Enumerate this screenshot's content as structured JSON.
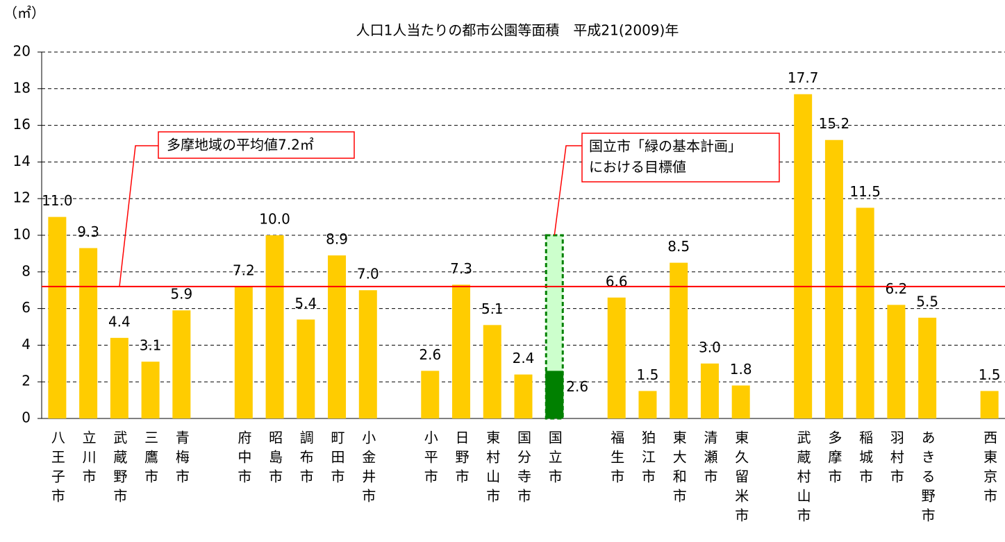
{
  "chart_data": {
    "type": "bar",
    "title": "人口1人当たりの都市公園等面積　平成21(2009)年",
    "y_unit": "（㎡）",
    "categories": [
      "八王子市",
      "立川市",
      "武蔵野市",
      "三鷹市",
      "青梅市",
      null,
      "府中市",
      "昭島市",
      "調布市",
      "町田市",
      "小金井市",
      null,
      "小平市",
      "日野市",
      "東村山市",
      "国分寺市",
      "国立市",
      null,
      "福生市",
      "狛江市",
      "東大和市",
      "清瀬市",
      "東久留米市",
      null,
      "武蔵村山市",
      "多摩市",
      "稲城市",
      "羽村市",
      "あきる野市",
      null,
      "西東京市"
    ],
    "values": [
      11.0,
      9.3,
      4.4,
      3.1,
      5.9,
      null,
      7.2,
      10.0,
      5.4,
      8.9,
      7.0,
      null,
      2.6,
      7.3,
      5.1,
      2.4,
      2.6,
      null,
      6.6,
      1.5,
      8.5,
      3.0,
      1.8,
      null,
      17.7,
      15.2,
      11.5,
      6.2,
      5.5,
      null,
      1.5
    ],
    "value_labels": [
      "11.0",
      "9.3",
      "4.4",
      "3.1",
      "5.9",
      null,
      "7.2",
      "10.0",
      "5.4",
      "8.9",
      "7.0",
      null,
      "2.6",
      "7.3",
      "5.1",
      "2.4",
      "2.6",
      null,
      "6.6",
      "1.5",
      "8.5",
      "3.0",
      "1.8",
      null,
      "17.7",
      "15.2",
      "11.5",
      "6.2",
      "5.5",
      null,
      "1.5"
    ],
    "color": "#ffcc00",
    "colors": [
      "#ffcc00",
      "#ffcc00",
      "#ffcc00",
      "#ffcc00",
      "#ffcc00",
      null,
      "#ffcc00",
      "#ffcc00",
      "#ffcc00",
      "#ffcc00",
      "#ffcc00",
      null,
      "#ffcc00",
      "#ffcc00",
      "#ffcc00",
      "#ffcc00",
      "#008000",
      null,
      "#ffcc00",
      "#ffcc00",
      "#ffcc00",
      "#ffcc00",
      "#ffcc00",
      null,
      "#ffcc00",
      "#ffcc00",
      "#ffcc00",
      "#ffcc00",
      "#ffcc00",
      null,
      "#ffcc00"
    ],
    "ylim": [
      0,
      20
    ],
    "yticks": [
      0,
      2,
      4,
      6,
      8,
      10,
      12,
      14,
      16,
      18,
      20
    ],
    "grid": true,
    "average": {
      "value": 7.2,
      "label": "多摩地域の平均値7.2㎡",
      "color": "#ff0000"
    },
    "target": {
      "value": 10,
      "category": 16,
      "label_lines": [
        "国立市「緑の基本計画」",
        "における目標値"
      ],
      "color": "#ccffcc"
    }
  }
}
